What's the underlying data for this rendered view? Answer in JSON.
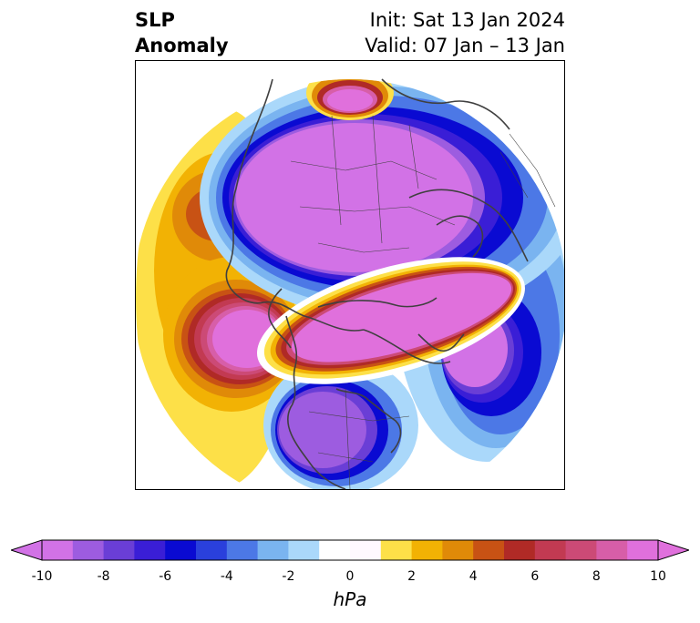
{
  "title": {
    "left_line1": "SLP",
    "left_line2": "Anomaly",
    "right_line1": "Init: Sat 13 Jan 2024",
    "right_line2": "Valid: 07 Jan – 13 Jan"
  },
  "colorbar": {
    "units": "hPa",
    "tick_labels": [
      "-10",
      "-8",
      "-6",
      "-4",
      "-2",
      "0",
      "2",
      "4",
      "6",
      "8",
      "10"
    ],
    "ticks": [
      -10,
      -8,
      -6,
      -4,
      -2,
      0,
      2,
      4,
      6,
      8,
      10
    ],
    "range": [
      -10,
      10
    ],
    "extend": "both",
    "colors": [
      "#d272e6",
      "#9d5ce0",
      "#6a3ed6",
      "#3a1ed6",
      "#0a0ad2",
      "#2a40dc",
      "#4c78e6",
      "#7ab4f0",
      "#aad8fa",
      "#ffffff",
      "#fff8ff",
      "#fde048",
      "#f2b204",
      "#e08a08",
      "#c85214",
      "#b02a26",
      "#c23a52",
      "#cc4a76",
      "#d75ea8",
      "#e070dc"
    ]
  },
  "map": {
    "projection": "north-polar-stereographic",
    "variable": "sea-level-pressure-anomaly"
  }
}
